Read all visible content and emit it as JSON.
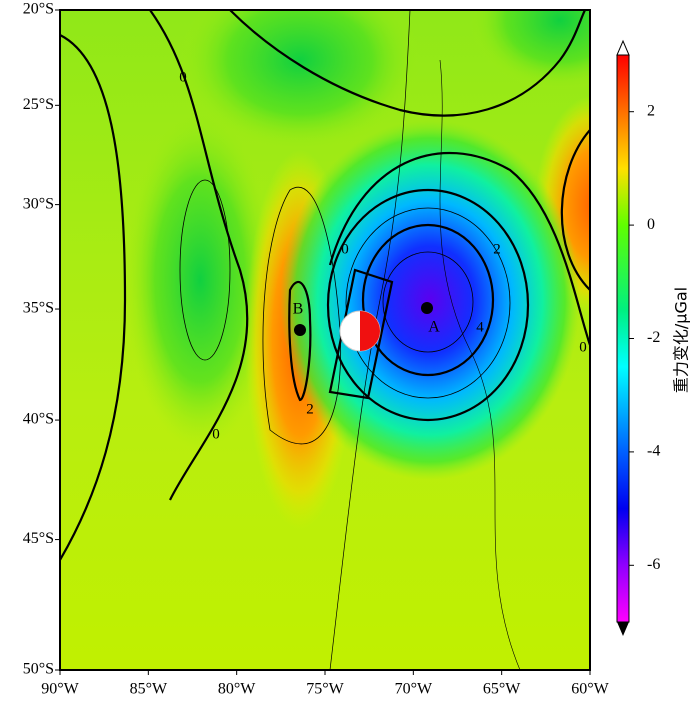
{
  "map": {
    "lon_ticks": [
      {
        "value": -90,
        "label": "90°W"
      },
      {
        "value": -85,
        "label": "85°W"
      },
      {
        "value": -80,
        "label": "80°W"
      },
      {
        "value": -75,
        "label": "75°W"
      },
      {
        "value": -70,
        "label": "70°W"
      },
      {
        "value": -65,
        "label": "65°W"
      },
      {
        "value": -60,
        "label": "60°W"
      }
    ],
    "lat_ticks": [
      {
        "value": -20,
        "label": "20°S"
      },
      {
        "value": -25,
        "label": "25°S"
      },
      {
        "value": -30,
        "label": "30°S"
      },
      {
        "value": -35,
        "label": "35°S"
      },
      {
        "value": -40,
        "label": "40°S"
      },
      {
        "value": -45,
        "label": "45°S"
      },
      {
        "value": -50,
        "label": "50°S"
      }
    ],
    "contour_labels": [
      0,
      0,
      0,
      0,
      2,
      2,
      4
    ],
    "points": [
      "A",
      "B"
    ]
  },
  "colorbar": {
    "label": "重力变化/μGal",
    "lim": [
      -7,
      3
    ],
    "ticks": [
      2,
      0,
      -2,
      -4,
      -6
    ]
  }
}
